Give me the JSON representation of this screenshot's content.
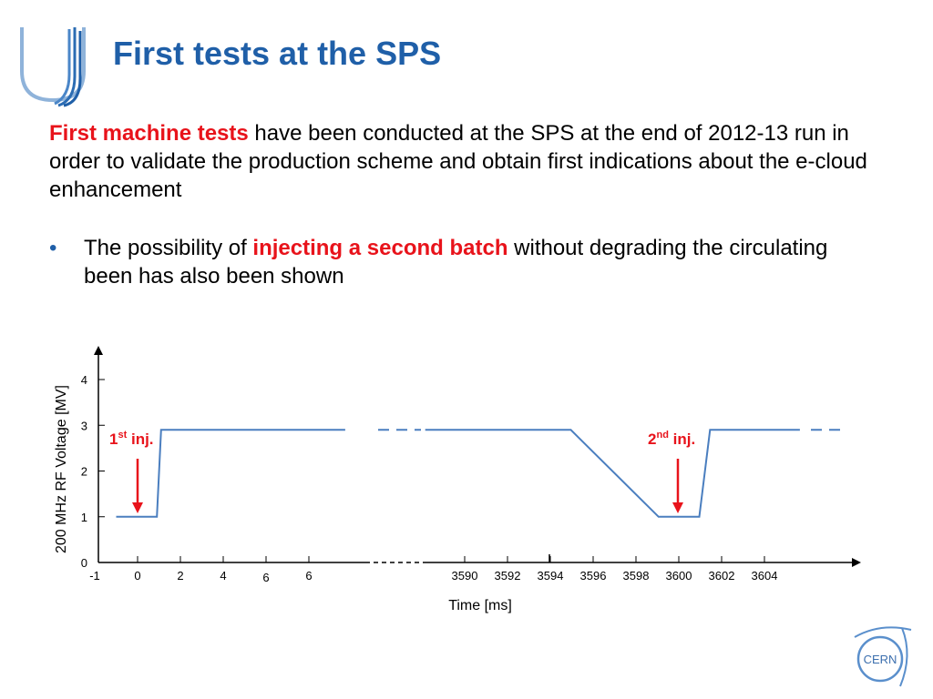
{
  "slide": {
    "title": "First tests at the SPS",
    "paragraph": {
      "highlight": "First machine tests",
      "rest": " have been conducted at the SPS at the end of 2012-13 run in order to validate the production scheme and obtain first indications about the e-cloud enhancement"
    },
    "bullet": {
      "symbol": "•",
      "before": "The possibility of ",
      "highlight": "injecting a second batch",
      "after": " without degrading the circulating been has also been shown"
    },
    "logo_icon": "lhc-upgrade-logo-icon",
    "cern_logo": {
      "icon": "cern-logo-icon",
      "text": "CERN"
    }
  },
  "colors": {
    "title": "#1f5fa8",
    "highlight": "#e8131b",
    "line": "#4a7ebf",
    "arrow": "#e8131b",
    "axis": "#000000"
  },
  "chart_data": {
    "type": "line",
    "ylabel": "200 MHz RF Voltage [MV]",
    "xlabel": "Time [ms]",
    "ylim": [
      0,
      4
    ],
    "y_ticks": [
      "0",
      "1",
      "2",
      "3",
      "4"
    ],
    "x_tick_labels_left": [
      "-1",
      "0",
      "2",
      "4",
      "6",
      "6"
    ],
    "x_tick_labels_right": [
      "3590",
      "3592",
      "3594",
      "3596",
      "3598",
      "3600",
      "3602",
      "3604"
    ],
    "broken_axis": true,
    "series": [
      {
        "segment": "left",
        "points": [
          [
            -1,
            1
          ],
          [
            0.9,
            1
          ],
          [
            1.1,
            2.9
          ],
          [
            9.7,
            2.9
          ]
        ]
      },
      {
        "segment": "right",
        "points": [
          [
            3588.2,
            2.9
          ],
          [
            3595.0,
            2.9
          ],
          [
            3599.1,
            1
          ],
          [
            3601.0,
            1
          ],
          [
            3601.5,
            2.9
          ],
          [
            3605.7,
            2.9
          ]
        ]
      }
    ],
    "annotations": [
      {
        "base": "1",
        "sup": "st",
        "tail": " inj.",
        "x": 0
      },
      {
        "base": "2",
        "sup": "nd",
        "tail": " inj.",
        "x": 3600
      }
    ]
  }
}
